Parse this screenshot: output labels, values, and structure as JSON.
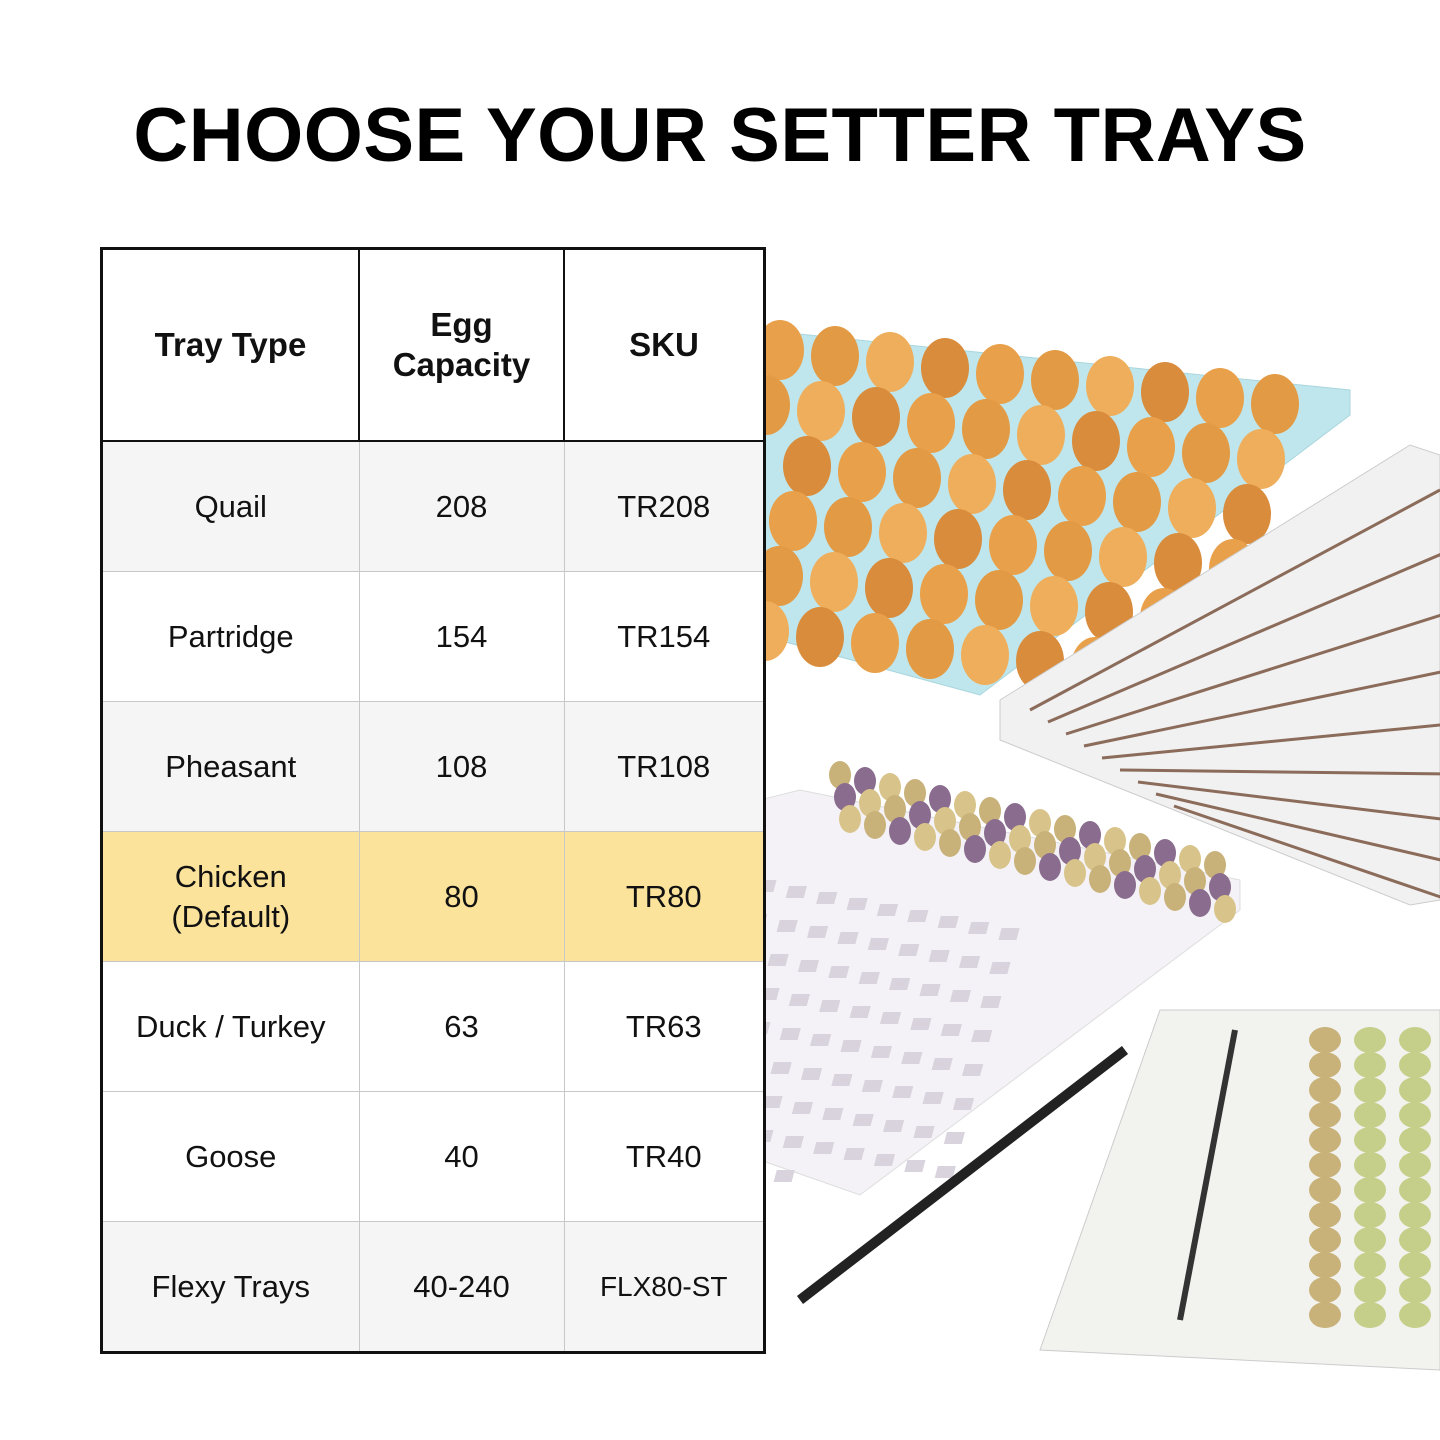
{
  "title": "CHOOSE YOUR SETTER TRAYS",
  "table": {
    "headers": [
      "Tray Type",
      "Egg\nCapacity",
      "SKU"
    ],
    "rows": [
      {
        "type": "Quail",
        "capacity": "208",
        "sku": "TR208"
      },
      {
        "type": "Partridge",
        "capacity": "154",
        "sku": "TR154"
      },
      {
        "type": "Pheasant",
        "capacity": "108",
        "sku": "TR108"
      },
      {
        "type": "Chicken\n(Default)",
        "capacity": "80",
        "sku": "TR80",
        "highlighted": true
      },
      {
        "type": "Duck / Turkey",
        "capacity": "63",
        "sku": "TR63"
      },
      {
        "type": "Goose",
        "capacity": "40",
        "sku": "TR40"
      },
      {
        "type": "Flexy Trays",
        "capacity": "40-240",
        "sku": "FLX80-ST"
      }
    ]
  },
  "colors": {
    "highlight": "#fbe39c",
    "stripe": "#f5f5f5",
    "tray_blue": "#bfe6ec",
    "egg_orange": "#e9a04a"
  }
}
